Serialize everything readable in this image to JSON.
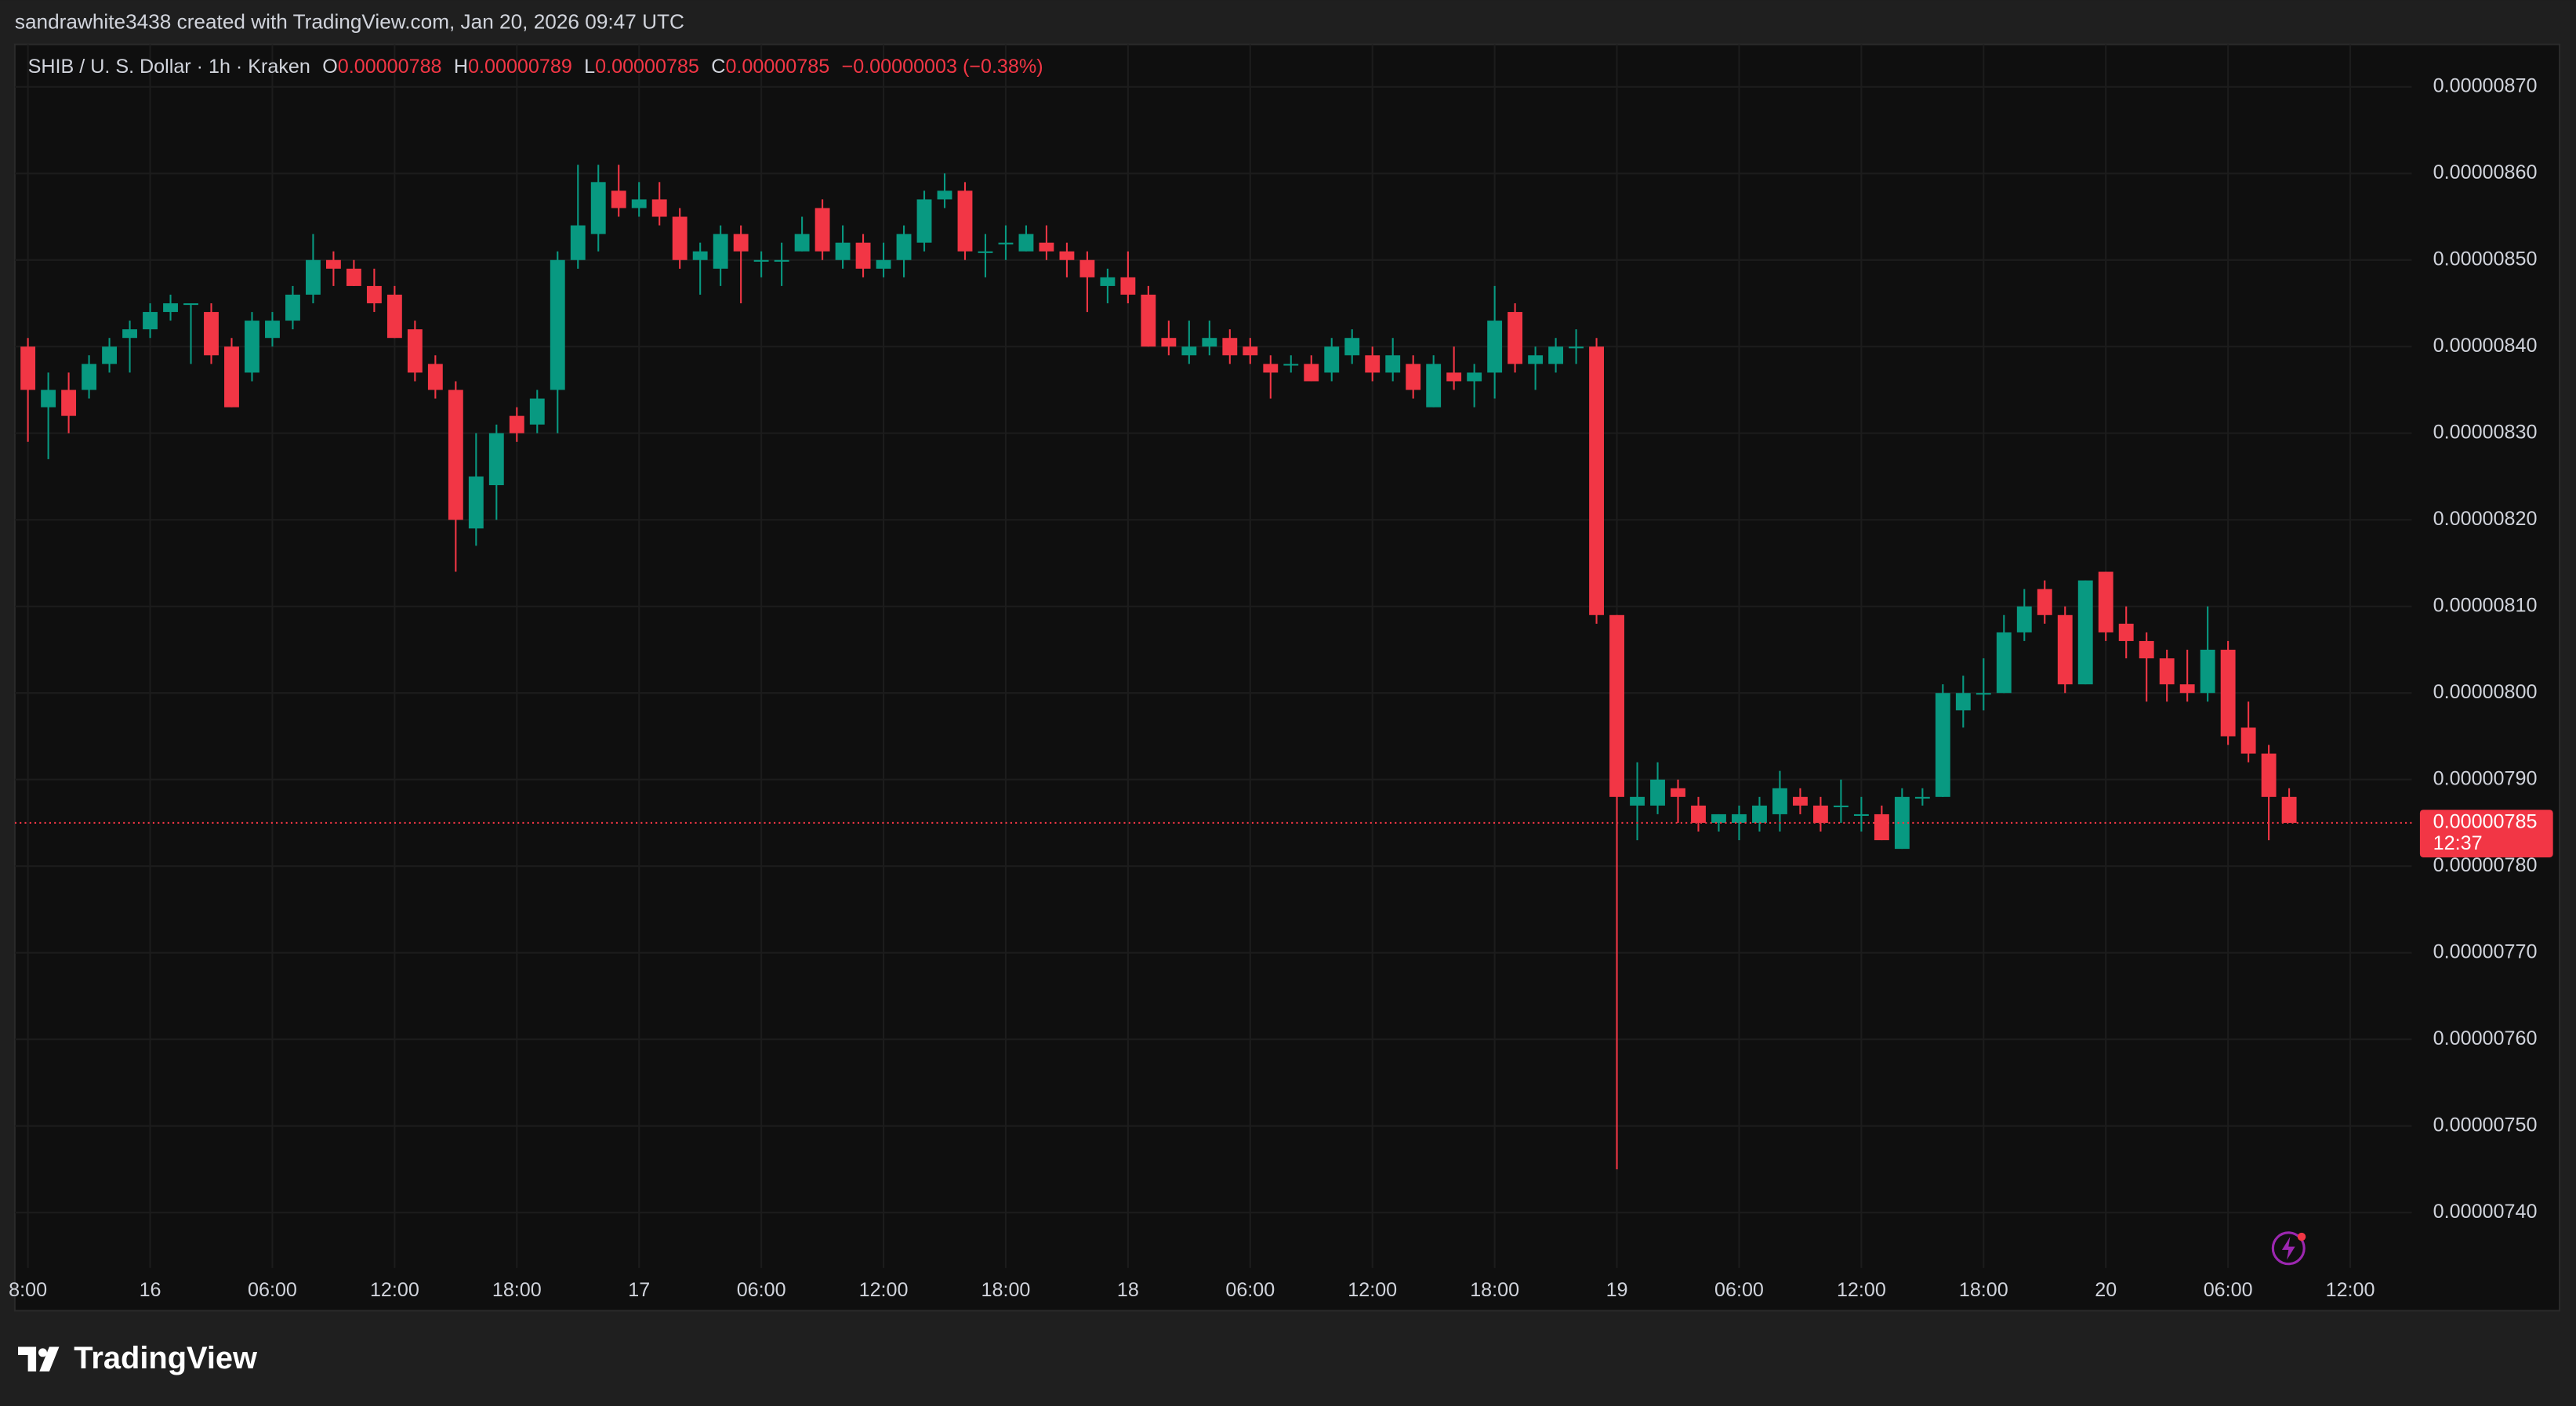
{
  "header": "sandrawhite3438 created with TradingView.com, Jan 20, 2026 09:47 UTC",
  "footer_logo": "TradingView",
  "chart_data": {
    "type": "candlestick",
    "legend": {
      "symbol": "SHIB / U. S. Dollar · 1h · Kraken",
      "o_key": "O",
      "open": "0.00000788",
      "h_key": "H",
      "high": "0.00000789",
      "l_key": "L",
      "low": "0.00000785",
      "c_key": "C",
      "close": "0.00000785",
      "change": "−0.00000003 (−0.38%)"
    },
    "up_color": "#089981",
    "down_color": "#f23645",
    "grid": true,
    "categories": [
      "8:00",
      null,
      null,
      null,
      null,
      null,
      "16",
      null,
      null,
      null,
      null,
      null,
      "06:00",
      null,
      null,
      null,
      null,
      null,
      "12:00",
      null,
      null,
      null,
      null,
      null,
      "18:00",
      null,
      null,
      null,
      null,
      null,
      "17",
      null,
      null,
      null,
      null,
      null,
      "06:00",
      null,
      null,
      null,
      null,
      null,
      "12:00",
      null,
      null,
      null,
      null,
      null,
      "18:00",
      null,
      null,
      null,
      null,
      null,
      "18",
      null,
      null,
      null,
      null,
      null,
      "06:00",
      null,
      null,
      null,
      null,
      null,
      "12:00",
      null,
      null,
      null,
      null,
      null,
      "18:00",
      null,
      null,
      null,
      null,
      null,
      "19",
      null,
      null,
      null,
      null,
      null,
      "06:00",
      null,
      null,
      null,
      null,
      null,
      "12:00",
      null,
      null,
      null,
      null,
      null,
      "18:00",
      null,
      null,
      null,
      null,
      null,
      "20",
      null,
      null,
      null,
      null,
      null,
      "06:00",
      null,
      null,
      null,
      null,
      null,
      "12:00"
    ],
    "open": [
      8.4e-06,
      8.33e-06,
      8.35e-06,
      8.35e-06,
      8.38e-06,
      8.41e-06,
      8.42e-06,
      8.44e-06,
      8.45e-06,
      8.44e-06,
      8.4e-06,
      8.37e-06,
      8.41e-06,
      8.43e-06,
      8.46e-06,
      8.5e-06,
      8.49e-06,
      8.47e-06,
      8.46e-06,
      8.42e-06,
      8.38e-06,
      8.35e-06,
      8.19e-06,
      8.24e-06,
      8.32e-06,
      8.31e-06,
      8.35e-06,
      8.5e-06,
      8.53e-06,
      8.58e-06,
      8.56e-06,
      8.57e-06,
      8.55e-06,
      8.5e-06,
      8.49e-06,
      8.53e-06,
      8.5e-06,
      8.5e-06,
      8.51e-06,
      8.56e-06,
      8.5e-06,
      8.52e-06,
      8.49e-06,
      8.5e-06,
      8.52e-06,
      8.57e-06,
      8.58e-06,
      8.51e-06,
      8.52e-06,
      8.51e-06,
      8.52e-06,
      8.51e-06,
      8.5e-06,
      8.47e-06,
      8.48e-06,
      8.46e-06,
      8.41e-06,
      8.39e-06,
      8.4e-06,
      8.41e-06,
      8.4e-06,
      8.38e-06,
      8.38e-06,
      8.38e-06,
      8.37e-06,
      8.39e-06,
      8.39e-06,
      8.37e-06,
      8.38e-06,
      8.33e-06,
      8.37e-06,
      8.36e-06,
      8.37e-06,
      8.44e-06,
      8.38e-06,
      8.38e-06,
      8.4e-06,
      8.4e-06,
      8.09e-06,
      7.87e-06,
      7.87e-06,
      7.89e-06,
      7.87e-06,
      7.85e-06,
      7.85e-06,
      7.85e-06,
      7.86e-06,
      7.88e-06,
      7.87e-06,
      7.87e-06,
      7.86e-06,
      7.86e-06,
      7.82e-06,
      7.88e-06,
      7.88e-06,
      7.98e-06,
      8e-06,
      8e-06,
      8.07e-06,
      8.12e-06,
      8.09e-06,
      8.01e-06,
      8.14e-06,
      8.08e-06,
      8.06e-06,
      8.04e-06,
      8.01e-06,
      8e-06,
      8.05e-06,
      7.96e-06,
      7.93e-06,
      7.88e-06,
      null,
      null,
      null
    ],
    "high": [
      8.41e-06,
      8.37e-06,
      8.37e-06,
      8.39e-06,
      8.41e-06,
      8.43e-06,
      8.45e-06,
      8.46e-06,
      8.45e-06,
      8.45e-06,
      8.41e-06,
      8.44e-06,
      8.44e-06,
      8.47e-06,
      8.53e-06,
      8.51e-06,
      8.5e-06,
      8.49e-06,
      8.47e-06,
      8.43e-06,
      8.39e-06,
      8.36e-06,
      8.3e-06,
      8.31e-06,
      8.33e-06,
      8.35e-06,
      8.51e-06,
      8.61e-06,
      8.61e-06,
      8.61e-06,
      8.59e-06,
      8.59e-06,
      8.56e-06,
      8.52e-06,
      8.54e-06,
      8.54e-06,
      8.51e-06,
      8.52e-06,
      8.55e-06,
      8.57e-06,
      8.54e-06,
      8.53e-06,
      8.52e-06,
      8.54e-06,
      8.58e-06,
      8.6e-06,
      8.59e-06,
      8.53e-06,
      8.54e-06,
      8.54e-06,
      8.54e-06,
      8.52e-06,
      8.51e-06,
      8.49e-06,
      8.51e-06,
      8.47e-06,
      8.43e-06,
      8.43e-06,
      8.43e-06,
      8.42e-06,
      8.41e-06,
      8.39e-06,
      8.39e-06,
      8.39e-06,
      8.41e-06,
      8.42e-06,
      8.4e-06,
      8.41e-06,
      8.39e-06,
      8.39e-06,
      8.4e-06,
      8.38e-06,
      8.47e-06,
      8.45e-06,
      8.4e-06,
      8.41e-06,
      8.42e-06,
      8.41e-06,
      8.09e-06,
      7.92e-06,
      7.92e-06,
      7.9e-06,
      7.88e-06,
      7.86e-06,
      7.87e-06,
      7.88e-06,
      7.91e-06,
      7.89e-06,
      7.88e-06,
      7.9e-06,
      7.88e-06,
      7.87e-06,
      7.89e-06,
      7.89e-06,
      8.01e-06,
      8.02e-06,
      8.04e-06,
      8.09e-06,
      8.12e-06,
      8.13e-06,
      8.1e-06,
      8.13e-06,
      8.14e-06,
      8.1e-06,
      8.07e-06,
      8.05e-06,
      8.05e-06,
      8.1e-06,
      8.06e-06,
      7.99e-06,
      7.94e-06,
      7.89e-06,
      null,
      null,
      null
    ],
    "low": [
      8.29e-06,
      8.27e-06,
      8.3e-06,
      8.34e-06,
      8.37e-06,
      8.37e-06,
      8.41e-06,
      8.43e-06,
      8.38e-06,
      8.38e-06,
      8.33e-06,
      8.36e-06,
      8.4e-06,
      8.42e-06,
      8.45e-06,
      8.47e-06,
      8.47e-06,
      8.44e-06,
      8.41e-06,
      8.36e-06,
      8.34e-06,
      8.14e-06,
      8.17e-06,
      8.2e-06,
      8.29e-06,
      8.3e-06,
      8.3e-06,
      8.49e-06,
      8.51e-06,
      8.55e-06,
      8.55e-06,
      8.54e-06,
      8.49e-06,
      8.46e-06,
      8.47e-06,
      8.45e-06,
      8.48e-06,
      8.47e-06,
      8.51e-06,
      8.5e-06,
      8.49e-06,
      8.48e-06,
      8.48e-06,
      8.48e-06,
      8.51e-06,
      8.56e-06,
      8.5e-06,
      8.48e-06,
      8.5e-06,
      8.51e-06,
      8.5e-06,
      8.48e-06,
      8.44e-06,
      8.45e-06,
      8.45e-06,
      8.4e-06,
      8.39e-06,
      8.38e-06,
      8.39e-06,
      8.38e-06,
      8.38e-06,
      8.34e-06,
      8.37e-06,
      8.36e-06,
      8.36e-06,
      8.38e-06,
      8.36e-06,
      8.36e-06,
      8.34e-06,
      8.33e-06,
      8.35e-06,
      8.33e-06,
      8.34e-06,
      8.37e-06,
      8.35e-06,
      8.37e-06,
      8.38e-06,
      8.08e-06,
      7.45e-06,
      7.83e-06,
      7.86e-06,
      7.85e-06,
      7.84e-06,
      7.84e-06,
      7.83e-06,
      7.84e-06,
      7.84e-06,
      7.86e-06,
      7.84e-06,
      7.85e-06,
      7.84e-06,
      7.83e-06,
      7.82e-06,
      7.87e-06,
      7.88e-06,
      7.96e-06,
      7.98e-06,
      8e-06,
      8.06e-06,
      8.08e-06,
      8e-06,
      8.01e-06,
      8.06e-06,
      8.04e-06,
      7.99e-06,
      7.99e-06,
      7.99e-06,
      7.99e-06,
      7.94e-06,
      7.92e-06,
      7.83e-06,
      7.85e-06,
      null,
      null,
      null
    ],
    "close": [
      8.35e-06,
      8.35e-06,
      8.32e-06,
      8.38e-06,
      8.4e-06,
      8.42e-06,
      8.44e-06,
      8.45e-06,
      8.45e-06,
      8.39e-06,
      8.33e-06,
      8.43e-06,
      8.43e-06,
      8.46e-06,
      8.5e-06,
      8.49e-06,
      8.47e-06,
      8.45e-06,
      8.41e-06,
      8.37e-06,
      8.35e-06,
      8.2e-06,
      8.25e-06,
      8.3e-06,
      8.3e-06,
      8.34e-06,
      8.5e-06,
      8.54e-06,
      8.59e-06,
      8.56e-06,
      8.57e-06,
      8.55e-06,
      8.5e-06,
      8.51e-06,
      8.53e-06,
      8.51e-06,
      8.5e-06,
      8.5e-06,
      8.53e-06,
      8.51e-06,
      8.52e-06,
      8.49e-06,
      8.5e-06,
      8.53e-06,
      8.57e-06,
      8.58e-06,
      8.51e-06,
      8.51e-06,
      8.52e-06,
      8.53e-06,
      8.51e-06,
      8.5e-06,
      8.48e-06,
      8.48e-06,
      8.46e-06,
      8.4e-06,
      8.4e-06,
      8.4e-06,
      8.41e-06,
      8.39e-06,
      8.39e-06,
      8.37e-06,
      8.38e-06,
      8.36e-06,
      8.4e-06,
      8.41e-06,
      8.37e-06,
      8.39e-06,
      8.35e-06,
      8.38e-06,
      8.36e-06,
      8.37e-06,
      8.43e-06,
      8.38e-06,
      8.39e-06,
      8.4e-06,
      8.4e-06,
      8.09e-06,
      7.88e-06,
      7.88e-06,
      7.9e-06,
      7.88e-06,
      7.85e-06,
      7.86e-06,
      7.86e-06,
      7.87e-06,
      7.89e-06,
      7.87e-06,
      7.85e-06,
      7.87e-06,
      7.86e-06,
      7.83e-06,
      7.88e-06,
      7.88e-06,
      8e-06,
      8e-06,
      8e-06,
      8.07e-06,
      8.1e-06,
      8.09e-06,
      8.01e-06,
      8.13e-06,
      8.07e-06,
      8.06e-06,
      8.04e-06,
      8.01e-06,
      8e-06,
      8.05e-06,
      7.95e-06,
      7.93e-06,
      7.88e-06,
      7.85e-06,
      null,
      null,
      null
    ],
    "ylim": [
      7.336e-06,
      8.749e-06
    ],
    "yticks": [
      {
        "value": 7.4e-06,
        "label": "0.00000740"
      },
      {
        "value": 7.5e-06,
        "label": "0.00000750"
      },
      {
        "value": 7.6e-06,
        "label": "0.00000760"
      },
      {
        "value": 7.7e-06,
        "label": "0.00000770"
      },
      {
        "value": 7.8e-06,
        "label": "0.00000780"
      },
      {
        "value": 7.9e-06,
        "label": "0.00000790"
      },
      {
        "value": 8e-06,
        "label": "0.00000800"
      },
      {
        "value": 8.1e-06,
        "label": "0.00000810"
      },
      {
        "value": 8.2e-06,
        "label": "0.00000820"
      },
      {
        "value": 8.3e-06,
        "label": "0.00000830"
      },
      {
        "value": 8.4e-06,
        "label": "0.00000840"
      },
      {
        "value": 8.5e-06,
        "label": "0.00000850"
      },
      {
        "value": 8.6e-06,
        "label": "0.00000860"
      },
      {
        "value": 8.7e-06,
        "label": "0.00000870"
      }
    ],
    "last_price": {
      "value": 7.85e-06,
      "label": "0.00000785",
      "countdown": "12:37"
    }
  }
}
